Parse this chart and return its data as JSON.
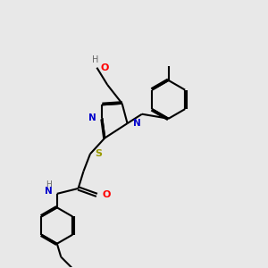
{
  "bg_color": "#e8e8e8",
  "bond_color": "#000000",
  "N_color": "#0000cc",
  "O_color": "#ff0000",
  "S_color": "#999900",
  "H_color": "#666666",
  "line_width": 1.5,
  "figsize": [
    3.0,
    3.0
  ],
  "dpi": 100,
  "xlim": [
    0,
    10
  ],
  "ylim": [
    0,
    10
  ]
}
